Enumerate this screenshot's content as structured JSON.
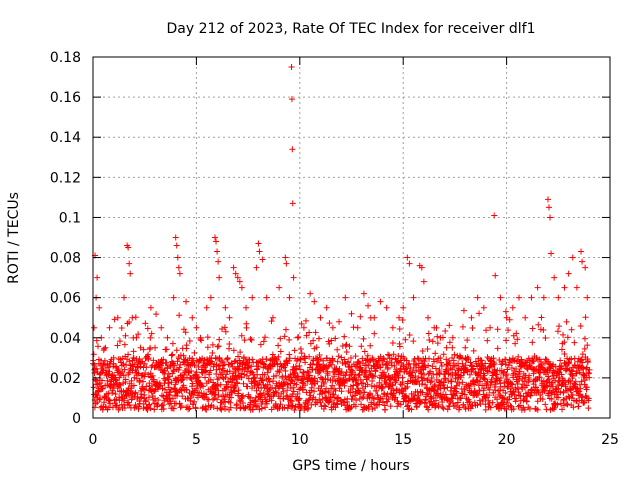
{
  "chart_data": {
    "type": "scatter",
    "title": "Day 212 of 2023, Rate Of TEC Index for receiver dlf1",
    "xlabel": "GPS time / hours",
    "ylabel": "ROTI / TECUs",
    "xlim": [
      0,
      25
    ],
    "ylim": [
      0,
      0.18
    ],
    "xticks": [
      0,
      5,
      10,
      15,
      20,
      25
    ],
    "yticks": [
      0,
      0.02,
      0.04,
      0.06,
      0.08,
      0.1,
      0.12,
      0.14,
      0.16,
      0.18
    ],
    "xtick_labels": [
      "0",
      "5",
      "10",
      "15",
      "20",
      "25"
    ],
    "ytick_labels": [
      "0",
      "0.02",
      "0.04",
      "0.06",
      "0.08",
      "0.1",
      "0.12",
      "0.14",
      "0.16",
      "0.18"
    ],
    "grid": true,
    "marker": "+",
    "color": "#ff0000",
    "series": [
      {
        "name": "ROTI",
        "points": [
          [
            0.1,
            0.081
          ],
          [
            0.2,
            0.07
          ],
          [
            0.15,
            0.06
          ],
          [
            0.3,
            0.055
          ],
          [
            0.05,
            0.045
          ],
          [
            0.4,
            0.04
          ],
          [
            0.6,
            0.035
          ],
          [
            0.8,
            0.045
          ],
          [
            1.0,
            0.03
          ],
          [
            1.2,
            0.05
          ],
          [
            1.5,
            0.06
          ],
          [
            1.65,
            0.086
          ],
          [
            1.7,
            0.085
          ],
          [
            1.75,
            0.077
          ],
          [
            1.8,
            0.072
          ],
          [
            1.9,
            0.05
          ],
          [
            2.1,
            0.04
          ],
          [
            2.3,
            0.035
          ],
          [
            2.6,
            0.03
          ],
          [
            2.8,
            0.055
          ],
          [
            3.0,
            0.035
          ],
          [
            3.3,
            0.045
          ],
          [
            3.6,
            0.04
          ],
          [
            3.9,
            0.06
          ],
          [
            4.0,
            0.09
          ],
          [
            4.05,
            0.086
          ],
          [
            4.1,
            0.08
          ],
          [
            4.15,
            0.075
          ],
          [
            4.2,
            0.072
          ],
          [
            4.5,
            0.058
          ],
          [
            4.8,
            0.05
          ],
          [
            5.0,
            0.045
          ],
          [
            5.2,
            0.04
          ],
          [
            5.5,
            0.055
          ],
          [
            5.7,
            0.06
          ],
          [
            5.9,
            0.09
          ],
          [
            5.95,
            0.088
          ],
          [
            6.0,
            0.083
          ],
          [
            6.05,
            0.078
          ],
          [
            6.1,
            0.07
          ],
          [
            6.4,
            0.055
          ],
          [
            6.6,
            0.05
          ],
          [
            6.8,
            0.075
          ],
          [
            6.9,
            0.072
          ],
          [
            7.0,
            0.07
          ],
          [
            7.1,
            0.068
          ],
          [
            7.2,
            0.065
          ],
          [
            7.4,
            0.055
          ],
          [
            7.7,
            0.06
          ],
          [
            7.9,
            0.075
          ],
          [
            8.0,
            0.087
          ],
          [
            8.05,
            0.083
          ],
          [
            8.2,
            0.079
          ],
          [
            8.4,
            0.06
          ],
          [
            8.7,
            0.05
          ],
          [
            9.0,
            0.065
          ],
          [
            9.3,
            0.08
          ],
          [
            9.35,
            0.077
          ],
          [
            9.5,
            0.06
          ],
          [
            9.6,
            0.175
          ],
          [
            9.62,
            0.159
          ],
          [
            9.64,
            0.134
          ],
          [
            9.66,
            0.107
          ],
          [
            9.7,
            0.07
          ],
          [
            9.9,
            0.04
          ],
          [
            10.2,
            0.045
          ],
          [
            10.5,
            0.062
          ],
          [
            10.7,
            0.058
          ],
          [
            11.0,
            0.05
          ],
          [
            11.3,
            0.055
          ],
          [
            11.6,
            0.045
          ],
          [
            11.9,
            0.048
          ],
          [
            12.2,
            0.06
          ],
          [
            12.5,
            0.052
          ],
          [
            12.8,
            0.045
          ],
          [
            13.1,
            0.062
          ],
          [
            13.3,
            0.056
          ],
          [
            13.6,
            0.05
          ],
          [
            13.9,
            0.058
          ],
          [
            14.2,
            0.055
          ],
          [
            14.5,
            0.045
          ],
          [
            14.8,
            0.05
          ],
          [
            15.0,
            0.055
          ],
          [
            15.2,
            0.08
          ],
          [
            15.3,
            0.077
          ],
          [
            15.5,
            0.06
          ],
          [
            15.8,
            0.076
          ],
          [
            15.9,
            0.075
          ],
          [
            16.0,
            0.068
          ],
          [
            16.2,
            0.05
          ],
          [
            16.5,
            0.045
          ],
          [
            16.8,
            0.04
          ],
          [
            17.1,
            0.035
          ],
          [
            17.4,
            0.04
          ],
          [
            17.7,
            0.03
          ],
          [
            18.0,
            0.035
          ],
          [
            18.3,
            0.05
          ],
          [
            18.6,
            0.06
          ],
          [
            18.9,
            0.055
          ],
          [
            19.2,
            0.045
          ],
          [
            19.4,
            0.101
          ],
          [
            19.45,
            0.071
          ],
          [
            19.7,
            0.06
          ],
          [
            20.0,
            0.05
          ],
          [
            20.3,
            0.055
          ],
          [
            20.6,
            0.06
          ],
          [
            20.9,
            0.05
          ],
          [
            21.2,
            0.06
          ],
          [
            21.5,
            0.065
          ],
          [
            21.8,
            0.06
          ],
          [
            22.0,
            0.109
          ],
          [
            22.05,
            0.105
          ],
          [
            22.1,
            0.1
          ],
          [
            22.15,
            0.082
          ],
          [
            22.3,
            0.07
          ],
          [
            22.5,
            0.06
          ],
          [
            22.8,
            0.065
          ],
          [
            23.0,
            0.072
          ],
          [
            23.2,
            0.08
          ],
          [
            23.4,
            0.065
          ],
          [
            23.6,
            0.083
          ],
          [
            23.65,
            0.078
          ],
          [
            23.8,
            0.075
          ],
          [
            23.9,
            0.06
          ]
        ]
      }
    ],
    "dense_band": {
      "x_start": 0,
      "x_end": 24,
      "y_floor": 0.004,
      "y_typical_max": 0.03,
      "description_values": [
        0.01,
        0.015,
        0.02,
        0.025
      ]
    }
  }
}
